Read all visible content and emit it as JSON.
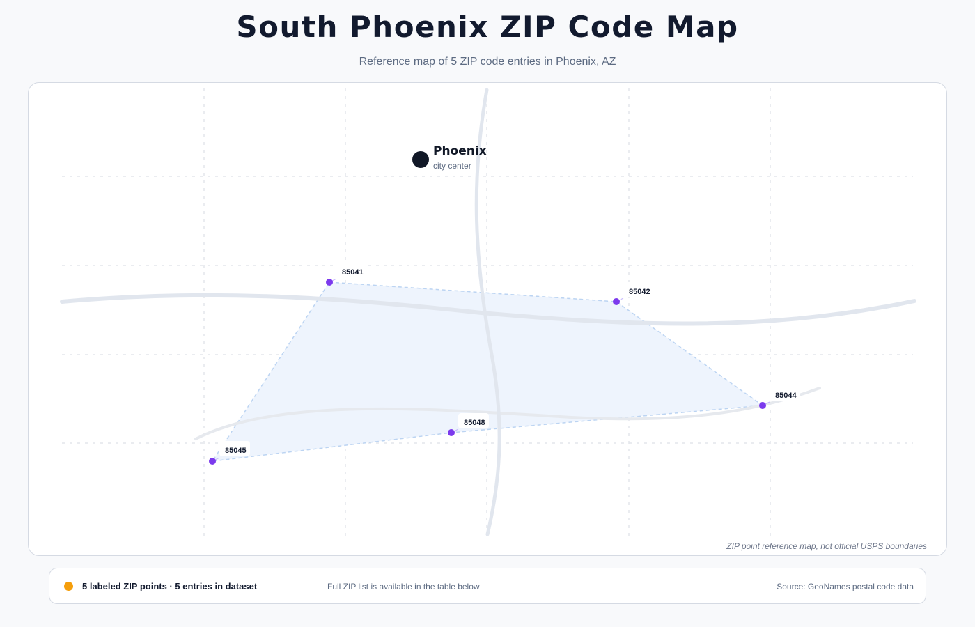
{
  "header": {
    "title": "South Phoenix ZIP Code Map",
    "subtitle": "Reference map of 5 ZIP code entries in Phoenix, AZ"
  },
  "map": {
    "city": {
      "name": "Phoenix",
      "sublabel": "city center"
    },
    "zip_points": [
      {
        "zip": "85041"
      },
      {
        "zip": "85042"
      },
      {
        "zip": "85044"
      },
      {
        "zip": "85048"
      },
      {
        "zip": "85045"
      }
    ],
    "note": "ZIP point reference map, not official USPS boundaries",
    "colors": {
      "point": "#7c3aed",
      "city": "#111827",
      "area_fill": "#eef4fd",
      "area_stroke": "#bcd4f2",
      "roads": "#e1e6ee",
      "grid": "#e3e6ec"
    }
  },
  "footer": {
    "count_text": "5 labeled ZIP points · 5 entries in dataset",
    "table_note": "Full ZIP list is available in the table below",
    "source": "Source: GeoNames postal code data",
    "dot_color": "#f59e0b"
  }
}
